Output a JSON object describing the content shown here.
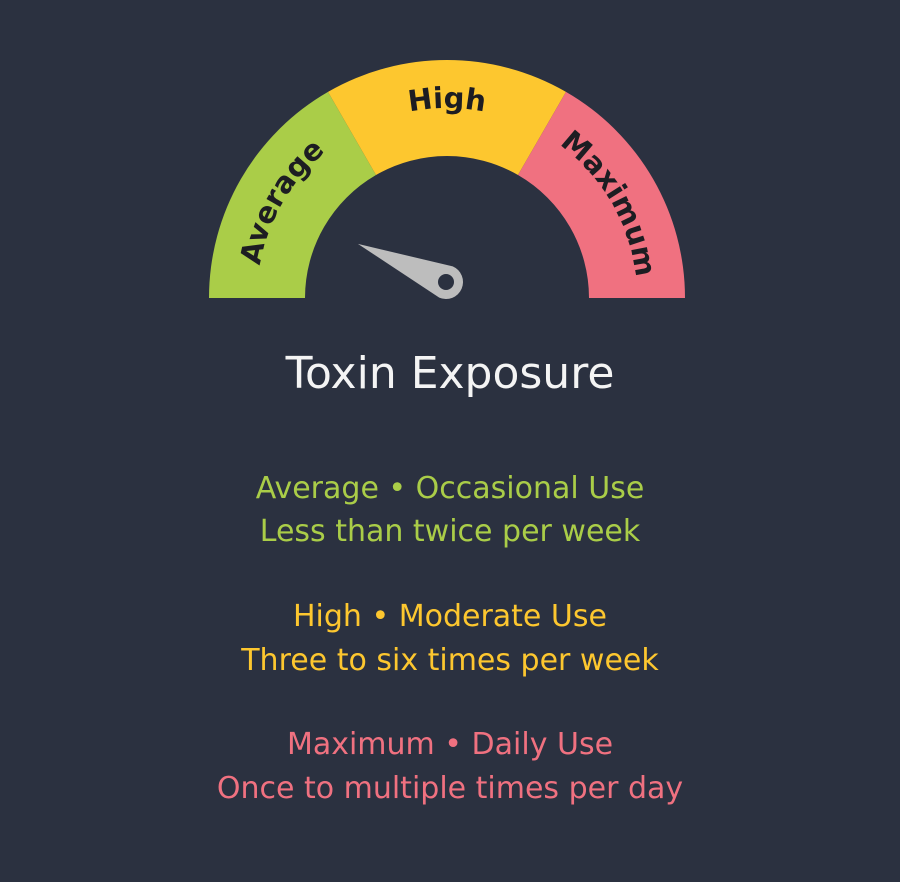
{
  "gauge": {
    "needle_level": 0.13,
    "needle_color": "#bdbdbd",
    "segments": [
      {
        "label": "Average",
        "color": "#aacd48"
      },
      {
        "label": "High",
        "color": "#fdc72f"
      },
      {
        "label": "Maximum",
        "color": "#f07180"
      }
    ]
  },
  "title": "Toxin Exposure",
  "legend": [
    {
      "heading": "Average • Occasional Use",
      "detail": "Less than twice per week",
      "color": "#aacd48"
    },
    {
      "heading": "High • Moderate Use",
      "detail": "Three to six times per week",
      "color": "#fdc72f"
    },
    {
      "heading": "Maximum • Daily Use",
      "detail": "Once to multiple times per day",
      "color": "#f07180"
    }
  ]
}
